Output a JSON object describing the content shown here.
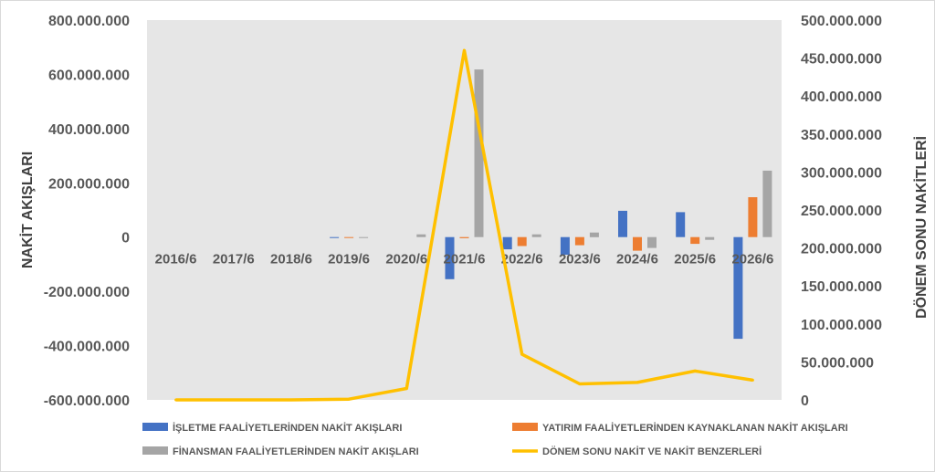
{
  "chart_data": {
    "type": "bar",
    "categories": [
      "2016/6",
      "2017/6",
      "2018/6",
      "2019/6",
      "2020/6",
      "2021/6",
      "2022/6",
      "2023/6",
      "2024/6",
      "2025/6",
      "2026/6"
    ],
    "series": [
      {
        "name": "İŞLETME FAALİYETLERİNDEN NAKİT AKIŞLARI",
        "type": "bar",
        "axis": "left",
        "color": "#4472C4",
        "values": [
          0,
          0,
          0,
          -3000000,
          0,
          -155000000,
          -45000000,
          -65000000,
          97000000,
          92000000,
          -375000000
        ]
      },
      {
        "name": "YATIRIM FAALİYETLERİNDEN KAYNAKLANAN NAKİT AKIŞLARI",
        "type": "bar",
        "axis": "left",
        "color": "#ED7D31",
        "values": [
          0,
          0,
          0,
          -3000000,
          0,
          -4000000,
          -33000000,
          -30000000,
          -50000000,
          -25000000,
          147000000
        ]
      },
      {
        "name": "FİNANSMAN FAALİYETLERİNDEN NAKİT AKIŞLARI",
        "type": "bar",
        "axis": "left",
        "color": "#A5A5A5",
        "values": [
          0,
          0,
          0,
          -3000000,
          10000000,
          618000000,
          10000000,
          17000000,
          -40000000,
          -10000000,
          245000000
        ]
      },
      {
        "name": "DÖNEM SONU NAKİT VE NAKİT BENZERLERİ",
        "type": "line",
        "axis": "right",
        "color": "#FFC000",
        "values": [
          0,
          0,
          0,
          1000000,
          15000000,
          460000000,
          60000000,
          21000000,
          23000000,
          38000000,
          26000000
        ]
      }
    ],
    "ylabel": "NAKİT AKIŞLARI",
    "y2label": "DÖNEM SONU NAKİTLERİ",
    "ylim": [
      -600000000,
      800000000
    ],
    "y2lim": [
      0,
      500000000
    ],
    "yticks": [
      "800.000.000",
      "600.000.000",
      "400.000.000",
      "200.000.000",
      "0",
      "-200.000.000",
      "-400.000.000",
      "-600.000.000"
    ],
    "y2ticks": [
      "500.000.000",
      "450.000.000",
      "400.000.000",
      "350.000.000",
      "300.000.000",
      "250.000.000",
      "200.000.000",
      "150.000.000",
      "100.000.000",
      "50.000.000",
      "0"
    ],
    "grid": false,
    "legend_position": "bottom"
  }
}
